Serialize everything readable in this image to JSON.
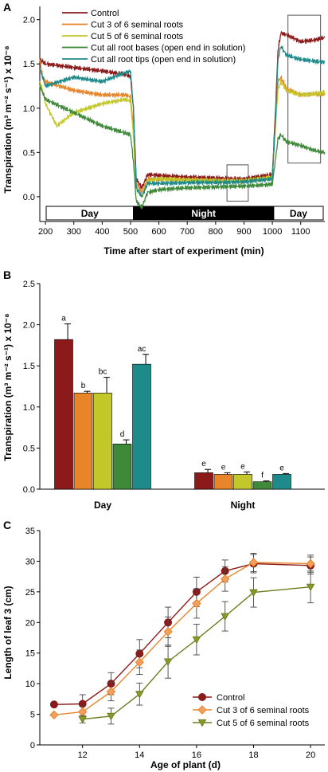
{
  "chart_data": [
    {
      "panel": "A",
      "type": "line",
      "xlabel": "Time after start of experiment (min)",
      "ylabel": "Transpiration (m³ m⁻² s⁻¹) x 10⁻⁸",
      "xlim": [
        180,
        1185
      ],
      "ylim": [
        -0.28,
        2.15
      ],
      "xticks": [
        200,
        300,
        400,
        500,
        600,
        700,
        800,
        900,
        1000,
        1100
      ],
      "yticks": [
        0.0,
        0.5,
        1.0,
        1.5,
        2.0
      ],
      "legend_position": "top-left",
      "periods": [
        {
          "label": "Day",
          "start": 180,
          "end": 510,
          "fill": "#ffffff"
        },
        {
          "label": "Night",
          "start": 510,
          "end": 1005,
          "fill": "#000000"
        },
        {
          "label": "Day",
          "start": 1005,
          "end": 1185,
          "fill": "#ffffff"
        }
      ],
      "highlight_boxes": [
        {
          "x": [
            840,
            915
          ],
          "y": [
            -0.05,
            0.36
          ]
        },
        {
          "x": [
            1055,
            1170
          ],
          "y": [
            0.38,
            2.05
          ]
        }
      ],
      "series": [
        {
          "name": "Control",
          "color": "#8b1a1a",
          "x": [
            180,
            200,
            300,
            400,
            480,
            500,
            510,
            520,
            540,
            560,
            600,
            700,
            800,
            900,
            1000,
            1010,
            1020,
            1030,
            1050,
            1100,
            1150,
            1185
          ],
          "y": [
            1.55,
            1.5,
            1.46,
            1.42,
            1.38,
            1.36,
            1.0,
            0.2,
            0.1,
            0.25,
            0.24,
            0.22,
            0.21,
            0.2,
            0.25,
            0.9,
            1.65,
            1.85,
            1.83,
            1.75,
            1.77,
            1.8
          ]
        },
        {
          "name": "Cut 3 of 6 seminal roots",
          "color": "#e8852a",
          "x": [
            180,
            190,
            200,
            300,
            400,
            480,
            500,
            510,
            520,
            540,
            560,
            600,
            700,
            800,
            900,
            1000,
            1010,
            1020,
            1030,
            1050,
            1100,
            1150,
            1185
          ],
          "y": [
            1.55,
            1.35,
            1.3,
            1.2,
            1.15,
            1.15,
            1.13,
            0.8,
            0.15,
            0.05,
            0.2,
            0.2,
            0.19,
            0.18,
            0.18,
            0.21,
            0.8,
            1.3,
            1.35,
            1.22,
            1.15,
            1.16,
            1.15
          ]
        },
        {
          "name": "Cut 5 of 6 seminal roots",
          "color": "#c2c72a",
          "x": [
            180,
            190,
            200,
            240,
            300,
            400,
            480,
            500,
            510,
            520,
            540,
            560,
            600,
            700,
            800,
            900,
            1000,
            1010,
            1020,
            1030,
            1050,
            1100,
            1150,
            1185
          ],
          "y": [
            1.3,
            1.2,
            1.05,
            0.8,
            0.95,
            1.05,
            1.1,
            1.08,
            0.7,
            0.1,
            0.0,
            0.18,
            0.2,
            0.19,
            0.18,
            0.18,
            0.22,
            0.75,
            1.2,
            1.3,
            1.2,
            1.15,
            1.16,
            1.18
          ]
        },
        {
          "name": "Cut all root bases (open end in solution)",
          "color": "#3f8a3a",
          "x": [
            180,
            200,
            300,
            400,
            480,
            500,
            510,
            520,
            540,
            560,
            600,
            700,
            800,
            900,
            1000,
            1010,
            1020,
            1030,
            1050,
            1100,
            1150,
            1185
          ],
          "y": [
            1.25,
            1.1,
            0.95,
            0.8,
            0.72,
            0.7,
            0.4,
            -0.05,
            -0.12,
            0.05,
            0.08,
            0.1,
            0.11,
            0.12,
            0.14,
            0.4,
            0.65,
            0.7,
            0.62,
            0.58,
            0.52,
            0.5
          ]
        },
        {
          "name": "Cut all root tips (open end in solution)",
          "color": "#1f8a8a",
          "x": [
            180,
            200,
            300,
            400,
            480,
            500,
            510,
            520,
            540,
            560,
            600,
            700,
            800,
            900,
            1000,
            1010,
            1020,
            1030,
            1050,
            1100,
            1150,
            1185
          ],
          "y": [
            1.45,
            1.25,
            1.35,
            1.3,
            1.4,
            1.42,
            1.0,
            0.1,
            0.0,
            0.15,
            0.15,
            0.16,
            0.16,
            0.17,
            0.2,
            0.8,
            1.55,
            1.7,
            1.6,
            1.55,
            1.53,
            1.52
          ]
        }
      ]
    },
    {
      "panel": "B",
      "type": "bar",
      "categories": [
        "Day",
        "Night"
      ],
      "ylabel": "Transpiration (m³ m⁻² s⁻¹) x 10⁻⁸",
      "ylim": [
        0,
        2.5
      ],
      "yticks": [
        0.0,
        0.5,
        1.0,
        1.5,
        2.0,
        2.5
      ],
      "series": [
        {
          "color": "#8b1a1a",
          "values": [
            1.82,
            0.2
          ],
          "errors": [
            0.19,
            0.04
          ],
          "letters": [
            "a",
            "e"
          ]
        },
        {
          "color": "#e8852a",
          "values": [
            1.17,
            0.18
          ],
          "errors": [
            0.02,
            0.02
          ],
          "letters": [
            "b",
            "e"
          ]
        },
        {
          "color": "#c2c72a",
          "values": [
            1.17,
            0.18
          ],
          "errors": [
            0.19,
            0.03
          ],
          "letters": [
            "bc",
            "e"
          ]
        },
        {
          "color": "#3f8a3a",
          "values": [
            0.55,
            0.09
          ],
          "errors": [
            0.05,
            0.01
          ],
          "letters": [
            "d",
            "f"
          ]
        },
        {
          "color": "#1f8a8a",
          "values": [
            1.52,
            0.18
          ],
          "errors": [
            0.12,
            0.01
          ],
          "letters": [
            "ac",
            "e"
          ]
        }
      ]
    },
    {
      "panel": "C",
      "type": "line",
      "xlabel": "Age of plant (d)",
      "ylabel": "Length of leaf 3 (cm)",
      "xlim": [
        10.5,
        20.5
      ],
      "ylim": [
        0,
        35
      ],
      "xticks": [
        12,
        14,
        16,
        18,
        20
      ],
      "yticks": [
        0,
        5,
        10,
        15,
        20,
        25,
        30,
        35
      ],
      "legend_position": "bottom-right",
      "series": [
        {
          "name": "Control",
          "color": "#8b1a1a",
          "fill": "#8b1a1a",
          "marker": "circle",
          "x": [
            11,
            12,
            13,
            14,
            15,
            16,
            17,
            18,
            20
          ],
          "y": [
            6.6,
            6.7,
            10.0,
            14.9,
            20.0,
            25.0,
            28.4,
            29.6,
            29.3
          ],
          "errors": [
            0,
            1.5,
            1.8,
            2.3,
            2.5,
            2.4,
            1.8,
            1.5,
            1.4
          ]
        },
        {
          "name": "Cut 3 of 6 seminal roots",
          "color": "#e8852a",
          "fill": "#f2a060",
          "marker": "diamond",
          "x": [
            11,
            12,
            13,
            14,
            15,
            16,
            17,
            18,
            20
          ],
          "y": [
            4.9,
            5.4,
            8.7,
            13.5,
            18.5,
            23.1,
            27.1,
            29.8,
            29.6
          ],
          "errors": [
            0,
            1.0,
            1.5,
            2.0,
            2.4,
            2.4,
            2.0,
            1.5,
            1.4
          ]
        },
        {
          "name": "Cut 5 of 6 seminal roots",
          "color": "#6e7c1f",
          "fill": "#8a9a2a",
          "marker": "triangle-down",
          "x": [
            12,
            13,
            14,
            15,
            16,
            17,
            18,
            20
          ],
          "y": [
            4.2,
            4.7,
            8.3,
            13.6,
            17.2,
            21.0,
            24.9,
            25.8
          ],
          "errors": [
            0.6,
            1.3,
            1.8,
            2.7,
            2.5,
            2.4,
            2.4,
            2.6
          ]
        }
      ]
    }
  ]
}
